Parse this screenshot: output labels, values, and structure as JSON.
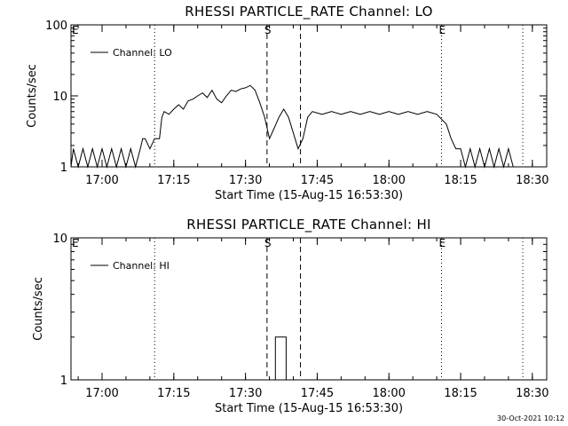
{
  "chart_data": [
    {
      "type": "line",
      "title": "RHESSI PARTICLE_RATE Channel: LO",
      "xlabel": "Start Time (15-Aug-15 16:53:30)",
      "ylabel": "Counts/sec",
      "yscale": "log",
      "ylim": [
        1,
        100
      ],
      "y_ticks": [
        "1",
        "10",
        "100"
      ],
      "x_ticks": [
        "17:00",
        "17:15",
        "17:30",
        "17:45",
        "18:00",
        "18:15",
        "18:30"
      ],
      "legend": "top-left",
      "series": [
        {
          "name": "Channel: LO",
          "points": [
            [
              "16:53:30",
              1
            ],
            [
              "16:54:00",
              1.8
            ],
            [
              "16:55:00",
              1
            ],
            [
              "16:56:00",
              1.8
            ],
            [
              "16:57:00",
              1
            ],
            [
              "16:58:00",
              1.8
            ],
            [
              "16:59:00",
              1
            ],
            [
              "17:00:00",
              1.8
            ],
            [
              "17:01:00",
              1
            ],
            [
              "17:02:00",
              1.8
            ],
            [
              "17:03:00",
              1
            ],
            [
              "17:04:00",
              1.8
            ],
            [
              "17:05:00",
              1
            ],
            [
              "17:06:00",
              1.8
            ],
            [
              "17:07:00",
              1
            ],
            [
              "17:08:00",
              1.8
            ],
            [
              "17:08:30",
              2.5
            ],
            [
              "17:09:00",
              2.5
            ],
            [
              "17:10:00",
              1.8
            ],
            [
              "17:11:00",
              2.5
            ],
            [
              "17:12:00",
              2.5
            ],
            [
              "17:12:30",
              5.0
            ],
            [
              "17:13:00",
              6.0
            ],
            [
              "17:14:00",
              5.5
            ],
            [
              "17:15:00",
              6.5
            ],
            [
              "17:16:00",
              7.5
            ],
            [
              "17:17:00",
              6.5
            ],
            [
              "17:18:00",
              8.5
            ],
            [
              "17:19:00",
              9.0
            ],
            [
              "17:20:00",
              10.0
            ],
            [
              "17:21:00",
              11.0
            ],
            [
              "17:22:00",
              9.5
            ],
            [
              "17:23:00",
              12.0
            ],
            [
              "17:24:00",
              9.0
            ],
            [
              "17:25:00",
              8.0
            ],
            [
              "17:26:00",
              10.0
            ],
            [
              "17:27:00",
              12.0
            ],
            [
              "17:28:00",
              11.5
            ],
            [
              "17:29:00",
              12.5
            ],
            [
              "17:30:00",
              13.0
            ],
            [
              "17:31:00",
              14.0
            ],
            [
              "17:32:00",
              12.0
            ],
            [
              "17:33:00",
              8.0
            ],
            [
              "17:34:00",
              5.0
            ],
            [
              "17:35:00",
              2.5
            ],
            [
              "17:36:00",
              3.5
            ],
            [
              "17:37:00",
              5.0
            ],
            [
              "17:38:00",
              6.5
            ],
            [
              "17:39:00",
              5.0
            ],
            [
              "17:40:00",
              3.0
            ],
            [
              "17:41:00",
              1.8
            ],
            [
              "17:42:00",
              2.5
            ],
            [
              "17:43:00",
              5.0
            ],
            [
              "17:44:00",
              6.0
            ],
            [
              "17:46:00",
              5.5
            ],
            [
              "17:48:00",
              6.0
            ],
            [
              "17:50:00",
              5.5
            ],
            [
              "17:52:00",
              6.0
            ],
            [
              "17:54:00",
              5.5
            ],
            [
              "17:56:00",
              6.0
            ],
            [
              "17:58:00",
              5.5
            ],
            [
              "18:00:00",
              6.0
            ],
            [
              "18:02:00",
              5.5
            ],
            [
              "18:04:00",
              6.0
            ],
            [
              "18:06:00",
              5.5
            ],
            [
              "18:08:00",
              6.0
            ],
            [
              "18:10:00",
              5.5
            ],
            [
              "18:12:00",
              4.0
            ],
            [
              "18:13:00",
              2.5
            ],
            [
              "18:14:00",
              1.8
            ],
            [
              "18:15:00",
              1.8
            ],
            [
              "18:16:00",
              1
            ],
            [
              "18:17:00",
              1.8
            ],
            [
              "18:18:00",
              1
            ],
            [
              "18:19:00",
              1.8
            ],
            [
              "18:20:00",
              1
            ],
            [
              "18:21:00",
              1.8
            ],
            [
              "18:22:00",
              1
            ],
            [
              "18:23:00",
              1.8
            ],
            [
              "18:24:00",
              1
            ],
            [
              "18:25:00",
              1.8
            ],
            [
              "18:26:00",
              1
            ],
            [
              "18:27:00",
              1
            ],
            [
              "18:28:00",
              1
            ],
            [
              "18:29:00",
              1
            ],
            [
              "18:30:00",
              1
            ],
            [
              "18:31:00",
              1
            ],
            [
              "18:32:00",
              1
            ]
          ]
        }
      ],
      "markers": [
        {
          "time": "17:11:00",
          "style": "dotted",
          "label": "E"
        },
        {
          "time": "17:34:30",
          "style": "dashed",
          "label": "S"
        },
        {
          "time": "17:41:30",
          "style": "dashed",
          "label": ""
        },
        {
          "time": "18:11:00",
          "style": "dotted",
          "label": "E"
        },
        {
          "time": "18:28:00",
          "style": "dotted",
          "label": ""
        }
      ]
    },
    {
      "type": "line",
      "title": "RHESSI PARTICLE_RATE Channel: HI",
      "xlabel": "Start Time (15-Aug-15 16:53:30)",
      "ylabel": "Counts/sec",
      "yscale": "log",
      "ylim": [
        1,
        10
      ],
      "y_ticks": [
        "1",
        "10"
      ],
      "x_ticks": [
        "17:00",
        "17:15",
        "17:30",
        "17:45",
        "18:00",
        "18:15",
        "18:30"
      ],
      "legend": "top-left",
      "series": [
        {
          "name": "Channel: HI",
          "points": [
            [
              "17:36:15",
              1
            ],
            [
              "17:36:15",
              2
            ],
            [
              "17:38:30",
              2
            ],
            [
              "17:38:30",
              1
            ]
          ]
        }
      ],
      "markers": [
        {
          "time": "17:11:00",
          "style": "dotted",
          "label": "E"
        },
        {
          "time": "17:34:30",
          "style": "dashed",
          "label": "S"
        },
        {
          "time": "17:41:30",
          "style": "dashed",
          "label": ""
        },
        {
          "time": "18:11:00",
          "style": "dotted",
          "label": "E"
        },
        {
          "time": "18:28:00",
          "style": "dotted",
          "label": ""
        }
      ]
    }
  ],
  "footer": {
    "timestamp": "30-Oct-2021 10:12"
  },
  "x_range": [
    "16:53:30",
    "18:33:00"
  ]
}
